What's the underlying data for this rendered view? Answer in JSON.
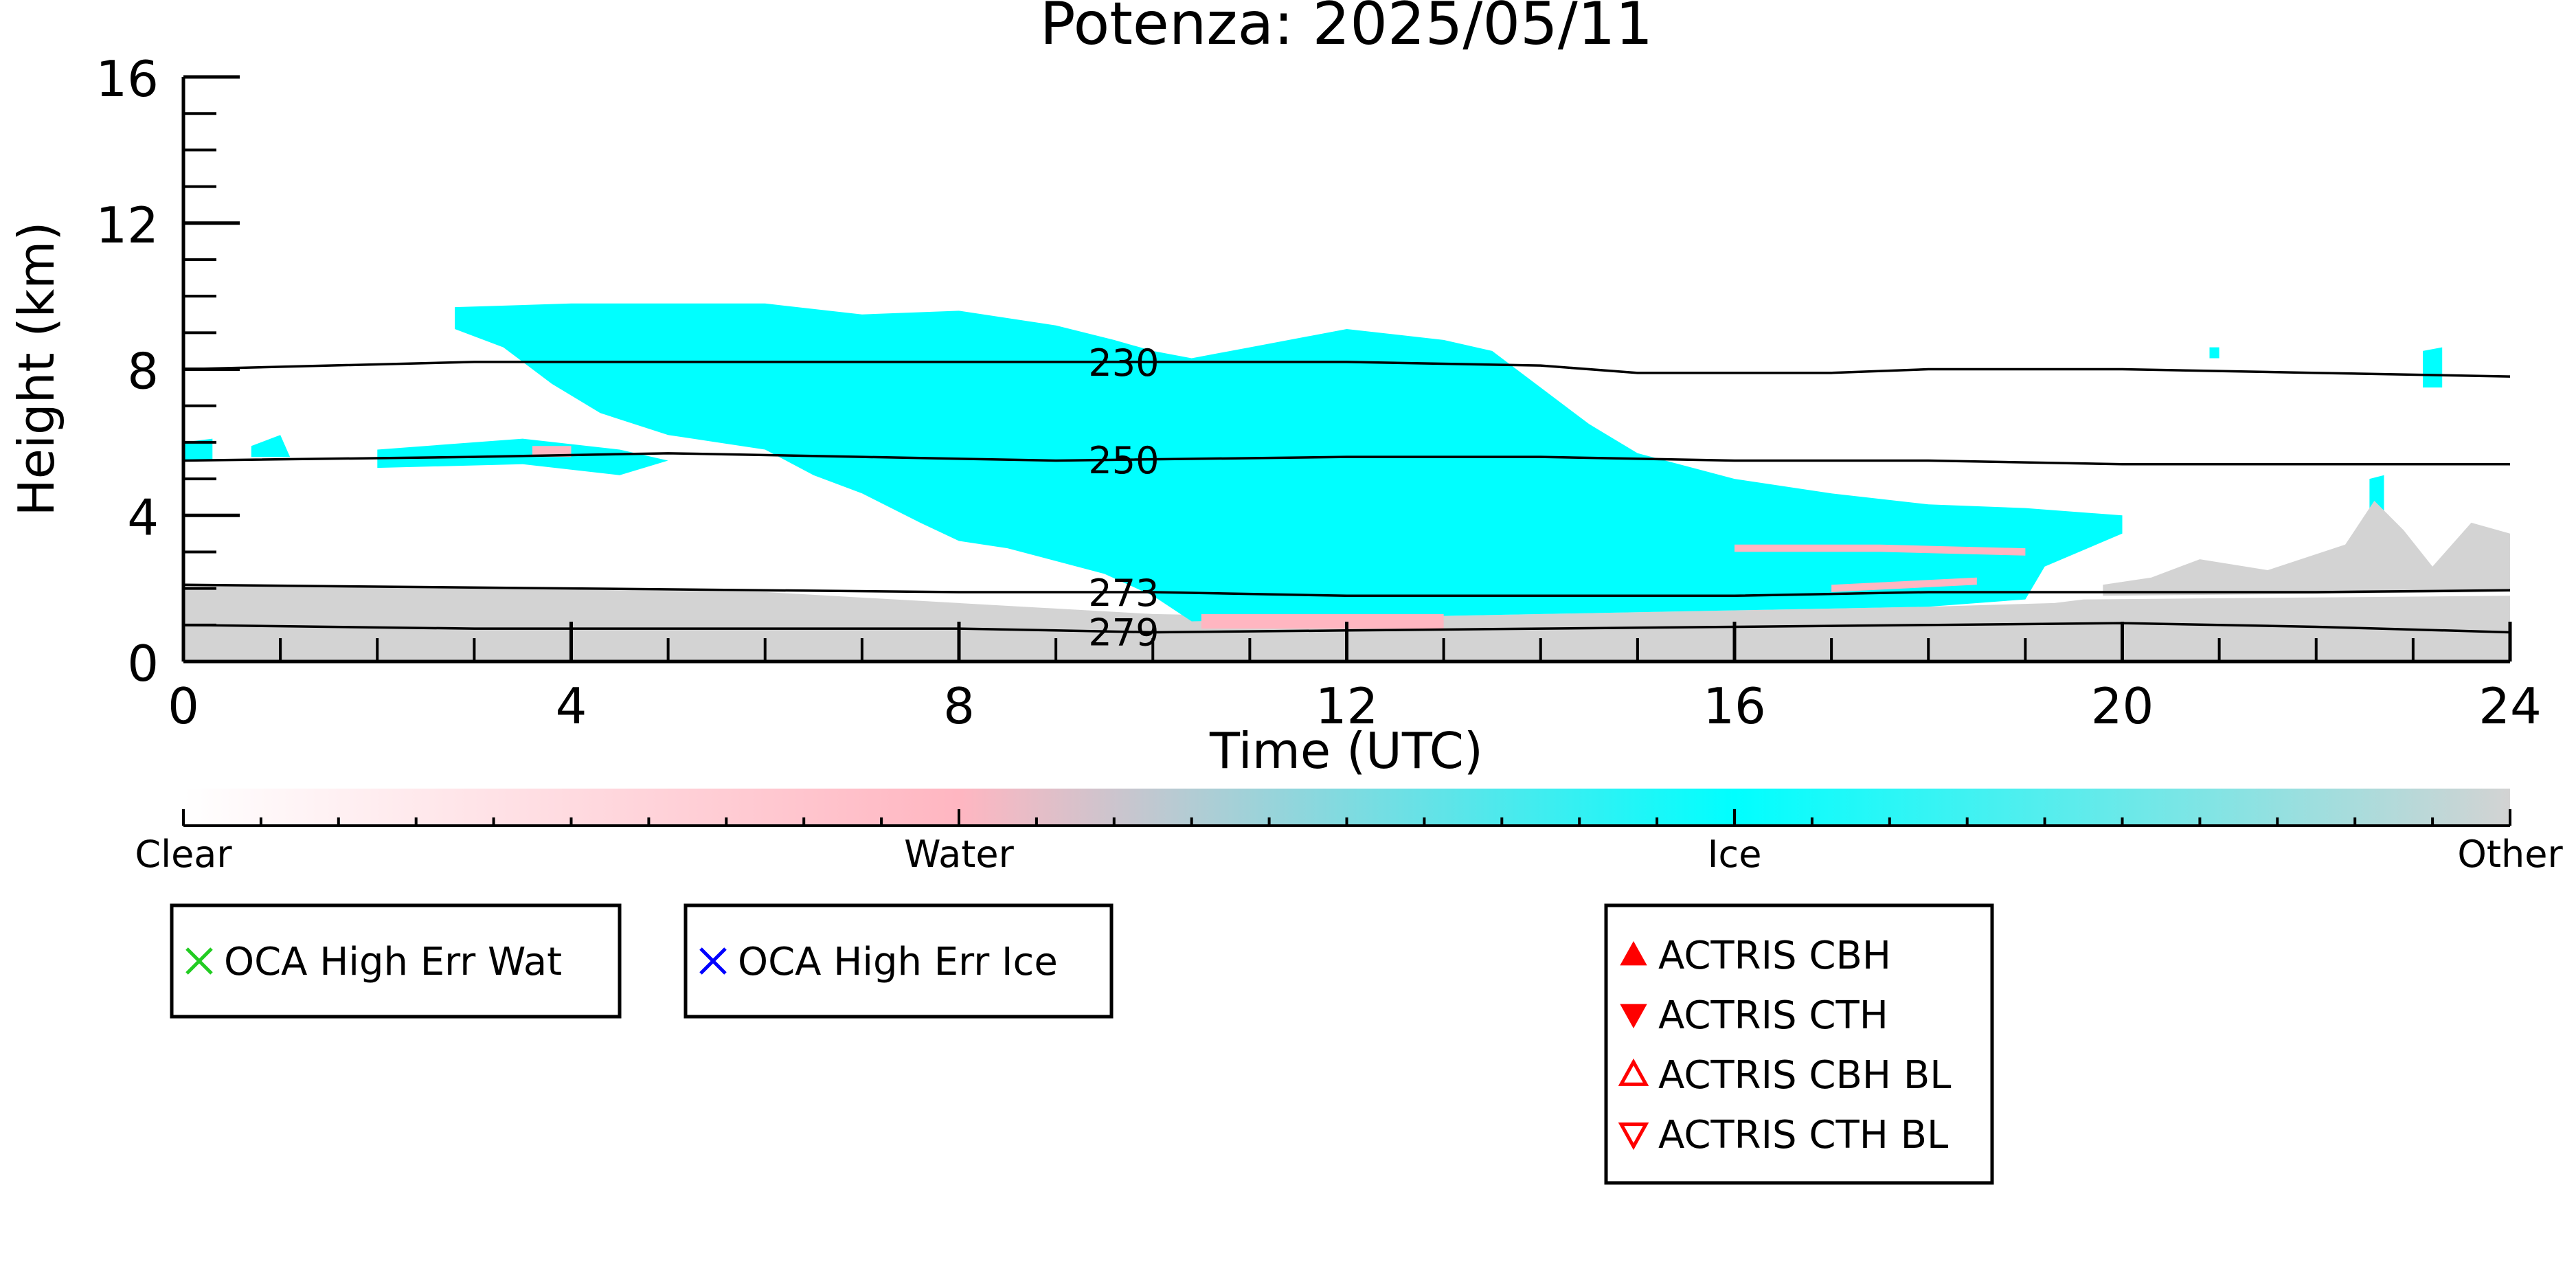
{
  "chart_data": {
    "type": "heatmap",
    "title": "Potenza: 2025/05/11",
    "xlabel": "Time (UTC)",
    "ylabel": "Height (km)",
    "xlim": [
      0,
      24
    ],
    "ylim": [
      0,
      16
    ],
    "x_ticks": [
      "0",
      "4",
      "8",
      "12",
      "16",
      "20",
      "24"
    ],
    "y_ticks": [
      "0",
      "4",
      "8",
      "12",
      "16"
    ],
    "colorbar": {
      "labels": [
        {
          "text": "Clear",
          "value": 0
        },
        {
          "text": "Water",
          "value": 1
        },
        {
          "text": "Ice",
          "value": 2
        },
        {
          "text": "Other",
          "value": 3
        }
      ],
      "stops": [
        "#ffffff",
        "#ffb6c1",
        "#00ffff",
        "#d3d3d3"
      ]
    },
    "classes": [
      {
        "name": "Ice",
        "color": "#00ffff"
      },
      {
        "name": "Water",
        "color": "#ffb6c1"
      },
      {
        "name": "Other",
        "color": "#d3d3d3"
      }
    ],
    "regions": [
      {
        "class": "Other",
        "polygon": [
          [
            0,
            0
          ],
          [
            0,
            2.1
          ],
          [
            3,
            2.0
          ],
          [
            6,
            1.9
          ],
          [
            8,
            1.6
          ],
          [
            10,
            1.3
          ],
          [
            12,
            1.2
          ],
          [
            14,
            1.3
          ],
          [
            16,
            1.4
          ],
          [
            18,
            1.5
          ],
          [
            19.3,
            1.6
          ],
          [
            19.6,
            1.7
          ],
          [
            24,
            1.8
          ],
          [
            24,
            0
          ]
        ]
      },
      {
        "class": "Ice",
        "polygon": [
          [
            2.8,
            9.7
          ],
          [
            4,
            9.8
          ],
          [
            6,
            9.8
          ],
          [
            7,
            9.5
          ],
          [
            8,
            9.6
          ],
          [
            9,
            9.2
          ],
          [
            9.6,
            8.8
          ],
          [
            10,
            8.5
          ],
          [
            10.4,
            8.3
          ],
          [
            11,
            8.6
          ],
          [
            12,
            9.1
          ],
          [
            13,
            8.8
          ],
          [
            13.5,
            8.5
          ],
          [
            14,
            7.5
          ],
          [
            14.5,
            6.5
          ],
          [
            15,
            5.7
          ],
          [
            16,
            5.0
          ],
          [
            17,
            4.6
          ],
          [
            18,
            4.3
          ],
          [
            19,
            4.2
          ],
          [
            20,
            4.0
          ],
          [
            20,
            3.5
          ],
          [
            19.2,
            2.6
          ],
          [
            19,
            1.7
          ],
          [
            18,
            1.5
          ],
          [
            16,
            1.4
          ],
          [
            14,
            1.3
          ],
          [
            12,
            1.2
          ],
          [
            10.4,
            1.1
          ],
          [
            10,
            1.8
          ],
          [
            9.5,
            2.4
          ],
          [
            8.5,
            3.1
          ],
          [
            8,
            3.3
          ],
          [
            7.6,
            3.8
          ],
          [
            7,
            4.6
          ],
          [
            6.5,
            5.1
          ],
          [
            6,
            5.8
          ],
          [
            5,
            6.2
          ],
          [
            4.3,
            6.8
          ],
          [
            3.8,
            7.6
          ],
          [
            3.3,
            8.6
          ],
          [
            2.8,
            9.1
          ]
        ]
      },
      {
        "class": "Ice",
        "polygon": [
          [
            0,
            6.0
          ],
          [
            0.3,
            6.1
          ],
          [
            0.3,
            5.5
          ],
          [
            0,
            5.5
          ]
        ]
      },
      {
        "class": "Ice",
        "polygon": [
          [
            0.7,
            5.9
          ],
          [
            1.0,
            6.2
          ],
          [
            1.1,
            5.6
          ],
          [
            0.7,
            5.6
          ]
        ]
      },
      {
        "class": "Ice",
        "polygon": [
          [
            2.0,
            5.8
          ],
          [
            3.5,
            6.1
          ],
          [
            4.5,
            5.8
          ],
          [
            5.0,
            5.5
          ],
          [
            4.5,
            5.1
          ],
          [
            3.5,
            5.4
          ],
          [
            2.0,
            5.3
          ]
        ]
      },
      {
        "class": "Ice",
        "polygon": [
          [
            23.1,
            8.5
          ],
          [
            23.3,
            8.6
          ],
          [
            23.3,
            7.5
          ],
          [
            23.1,
            7.5
          ]
        ]
      },
      {
        "class": "Ice",
        "polygon": [
          [
            22.55,
            5.0
          ],
          [
            22.7,
            5.1
          ],
          [
            22.7,
            3.9
          ],
          [
            22.55,
            3.9
          ]
        ]
      },
      {
        "class": "Ice",
        "polygon": [
          [
            20.9,
            8.6
          ],
          [
            21.0,
            8.6
          ],
          [
            21.0,
            8.3
          ],
          [
            20.9,
            8.3
          ]
        ]
      },
      {
        "class": "Water",
        "polygon": [
          [
            16.0,
            3.2
          ],
          [
            17.5,
            3.2
          ],
          [
            19.0,
            3.1
          ],
          [
            19.0,
            2.9
          ],
          [
            17.5,
            3.0
          ],
          [
            16.0,
            3.0
          ]
        ]
      },
      {
        "class": "Water",
        "polygon": [
          [
            17.0,
            2.1
          ],
          [
            18.5,
            2.3
          ],
          [
            18.5,
            2.1
          ],
          [
            17.0,
            1.9
          ]
        ]
      },
      {
        "class": "Water",
        "polygon": [
          [
            10.5,
            1.3
          ],
          [
            13.0,
            1.3
          ],
          [
            13.0,
            0.9
          ],
          [
            10.5,
            0.9
          ]
        ]
      },
      {
        "class": "Water",
        "polygon": [
          [
            3.6,
            5.9
          ],
          [
            4.0,
            5.9
          ],
          [
            4.0,
            5.6
          ],
          [
            3.6,
            5.6
          ]
        ]
      },
      {
        "class": "Other",
        "polygon": [
          [
            19.8,
            1.8
          ],
          [
            24,
            1.9
          ],
          [
            24,
            3.5
          ],
          [
            23.6,
            3.8
          ],
          [
            23.2,
            2.6
          ],
          [
            22.9,
            3.6
          ],
          [
            22.6,
            4.4
          ],
          [
            22.3,
            3.2
          ],
          [
            21.5,
            2.5
          ],
          [
            20.8,
            2.8
          ],
          [
            20.3,
            2.3
          ],
          [
            19.8,
            2.1
          ]
        ]
      }
    ],
    "isotherms": [
      {
        "label": "230",
        "label_x": 9.7,
        "points": [
          [
            0,
            8.0
          ],
          [
            3,
            8.2
          ],
          [
            6,
            8.2
          ],
          [
            8,
            8.2
          ],
          [
            10,
            8.2
          ],
          [
            12,
            8.2
          ],
          [
            14,
            8.1
          ],
          [
            15,
            7.9
          ],
          [
            17,
            7.9
          ],
          [
            18,
            8.0
          ],
          [
            20,
            8.0
          ],
          [
            22,
            7.9
          ],
          [
            24,
            7.8
          ]
        ]
      },
      {
        "label": "250",
        "label_x": 9.7,
        "points": [
          [
            0,
            5.5
          ],
          [
            3,
            5.6
          ],
          [
            5,
            5.7
          ],
          [
            7,
            5.6
          ],
          [
            9,
            5.5
          ],
          [
            12,
            5.6
          ],
          [
            14,
            5.6
          ],
          [
            16,
            5.5
          ],
          [
            18,
            5.5
          ],
          [
            20,
            5.4
          ],
          [
            24,
            5.4
          ]
        ]
      },
      {
        "label": "273",
        "label_x": 9.7,
        "points": [
          [
            0,
            2.1
          ],
          [
            4,
            2.0
          ],
          [
            8,
            1.9
          ],
          [
            10,
            1.9
          ],
          [
            12,
            1.8
          ],
          [
            14,
            1.8
          ],
          [
            16,
            1.8
          ],
          [
            18,
            1.9
          ],
          [
            20,
            1.9
          ],
          [
            22,
            1.9
          ],
          [
            24,
            1.95
          ]
        ]
      },
      {
        "label": "279",
        "label_x": 9.7,
        "points": [
          [
            0,
            1.0
          ],
          [
            3,
            0.9
          ],
          [
            6,
            0.9
          ],
          [
            8,
            0.9
          ],
          [
            9,
            0.85
          ],
          [
            10,
            0.8
          ],
          [
            12,
            0.85
          ],
          [
            14,
            0.9
          ],
          [
            16,
            0.95
          ],
          [
            18,
            1.0
          ],
          [
            20,
            1.05
          ],
          [
            22,
            0.95
          ],
          [
            24,
            0.8
          ]
        ]
      }
    ],
    "legends": [
      {
        "entries": [
          {
            "marker": "x",
            "color": "#22cc22",
            "label": "OCA High Err Wat"
          }
        ]
      },
      {
        "entries": [
          {
            "marker": "x",
            "color": "#0000ff",
            "label": "OCA High Err Ice"
          }
        ]
      },
      {
        "entries": [
          {
            "marker": "tri-up-filled",
            "color": "#ff0000",
            "label": "ACTRIS CBH"
          },
          {
            "marker": "tri-down-filled",
            "color": "#ff0000",
            "label": "ACTRIS CTH"
          },
          {
            "marker": "tri-up-open",
            "color": "#ff0000",
            "label": "ACTRIS CBH BL"
          },
          {
            "marker": "tri-down-open",
            "color": "#ff0000",
            "label": "ACTRIS CTH BL"
          }
        ]
      }
    ]
  }
}
